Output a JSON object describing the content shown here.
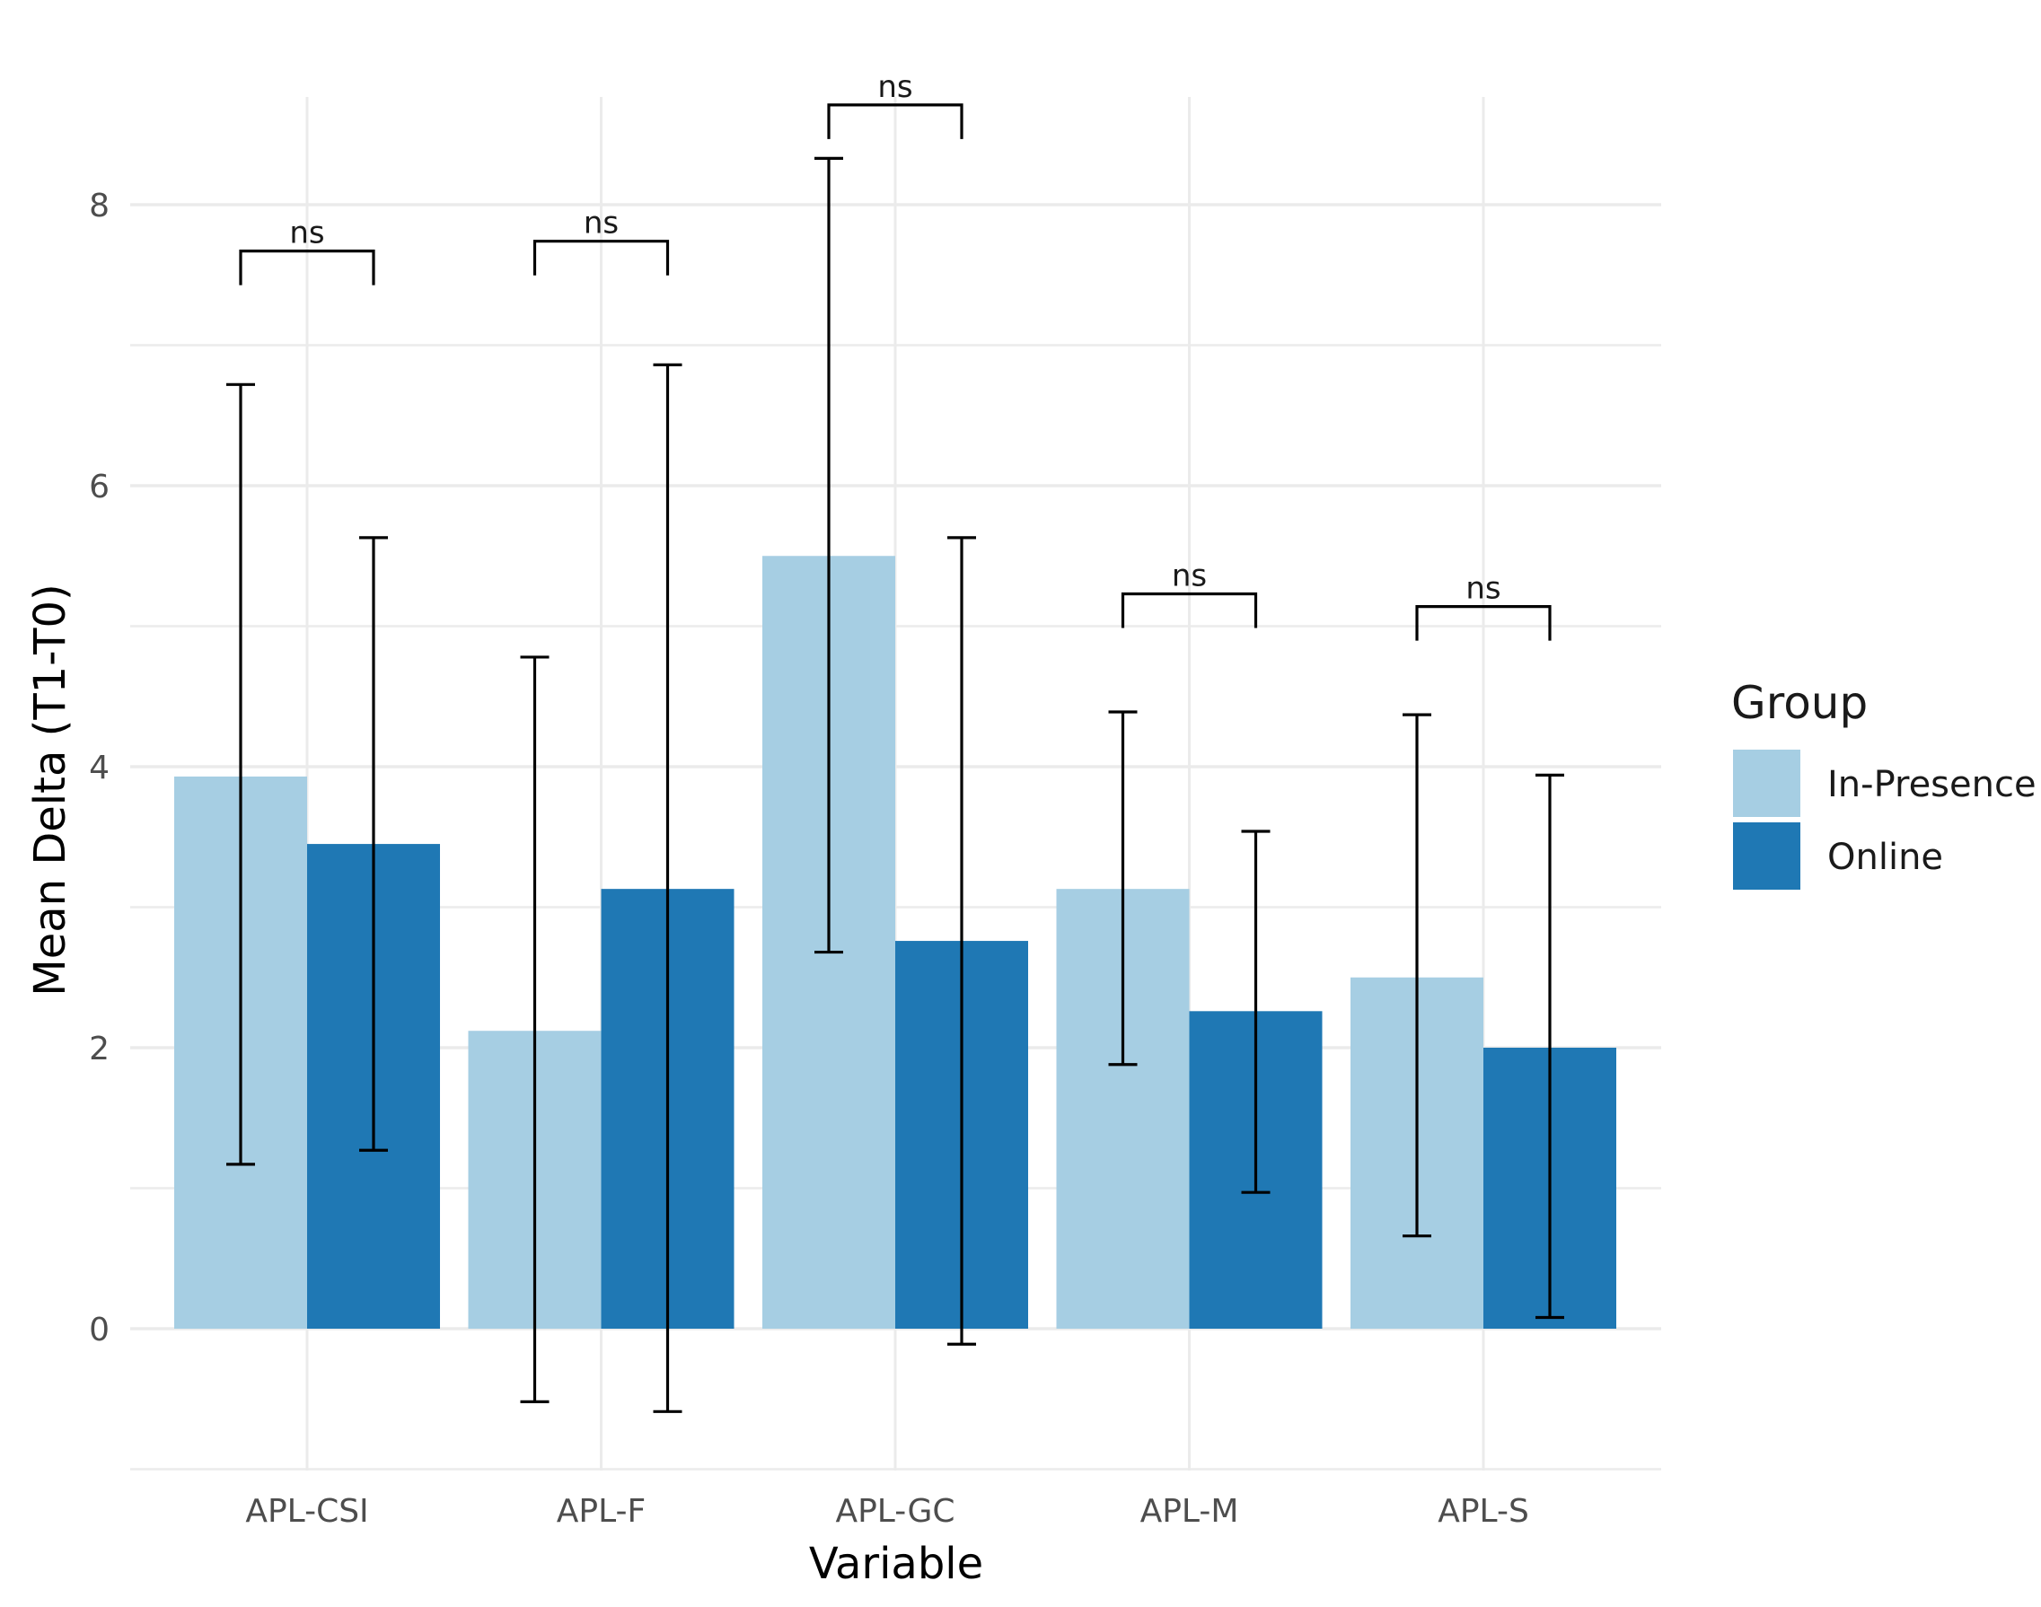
{
  "chart_data": {
    "type": "bar",
    "xlabel": "Variable",
    "ylabel": "Mean Delta (T1-T0)",
    "ylim": [
      -1,
      8.8
    ],
    "yticks": [
      0,
      2,
      4,
      6,
      8
    ],
    "grid": true,
    "categories": [
      "APL-CSI",
      "APL-F",
      "APL-GC",
      "APL-M",
      "APL-S"
    ],
    "legend": {
      "title": "Group",
      "position": "right"
    },
    "series": [
      {
        "name": "In-Presence",
        "color": "#a6cee3",
        "values": [
          3.93,
          2.12,
          5.5,
          3.13,
          2.5
        ],
        "error_low": [
          1.17,
          -0.52,
          2.68,
          1.88,
          0.66
        ],
        "error_high": [
          6.72,
          4.78,
          8.33,
          4.39,
          4.37
        ]
      },
      {
        "name": "Online",
        "color": "#1f78b4",
        "values": [
          3.45,
          3.13,
          2.76,
          2.26,
          2.0
        ],
        "error_low": [
          1.27,
          -0.59,
          -0.11,
          0.97,
          0.08
        ],
        "error_high": [
          5.63,
          6.86,
          5.63,
          3.54,
          3.94
        ]
      }
    ],
    "significance": [
      {
        "category": "APL-CSI",
        "label": "ns",
        "y": 7.67
      },
      {
        "category": "APL-F",
        "label": "ns",
        "y": 7.74
      },
      {
        "category": "APL-GC",
        "label": "ns",
        "y": 8.71
      },
      {
        "category": "APL-M",
        "label": "ns",
        "y": 5.23
      },
      {
        "category": "APL-S",
        "label": "ns",
        "y": 5.14
      }
    ]
  }
}
